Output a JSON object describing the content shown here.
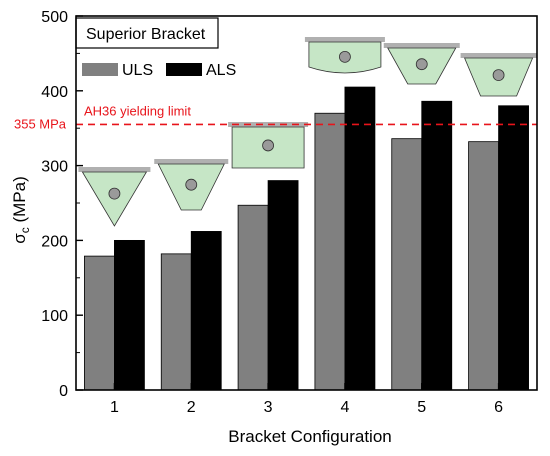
{
  "chart_data": {
    "type": "bar",
    "title": "Superior Bracket",
    "xlabel": "Bracket Configuration",
    "ylabel": "σc (MPa)",
    "ylabel_main": "σ",
    "ylabel_sub": "c",
    "ylabel_unit": " (MPa)",
    "categories": [
      "1",
      "2",
      "3",
      "4",
      "5",
      "6"
    ],
    "series": [
      {
        "name": "ULS",
        "color": "#808080",
        "values": [
          179,
          182,
          247,
          370,
          336,
          332
        ]
      },
      {
        "name": "ALS",
        "color": "#000000",
        "values": [
          200,
          212,
          280,
          405,
          386,
          380
        ]
      }
    ],
    "ylim": [
      0,
      500
    ],
    "yticks": [
      0,
      100,
      200,
      300,
      400,
      500
    ],
    "legend_position": "top-left",
    "grid": false,
    "reference_line": {
      "value": 355,
      "label": "AH36 yielding limit",
      "value_label": "355 MPa",
      "color": "#e8141b",
      "style": "dashed"
    },
    "bracket_shapes": [
      "triangle",
      "truncated-trapezoid",
      "rectangle",
      "curved-bottom-rectangle",
      "narrow-trapezoid",
      "trapezoid"
    ],
    "shape_fill_color": "#c6e6c6",
    "plate_color": "#b0b0b0",
    "hole_color": "#9a9a9a"
  }
}
